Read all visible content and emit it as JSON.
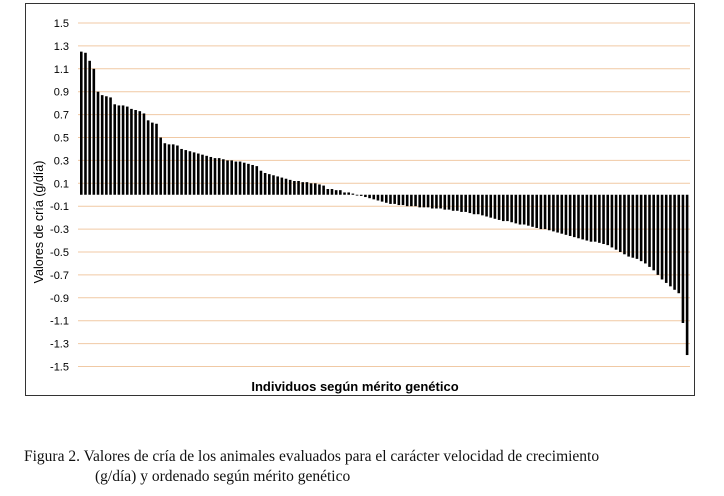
{
  "chart_data": {
    "type": "bar",
    "title": "",
    "xlabel": "Individuos  según mérito genético",
    "ylabel": "Valores de cría (g/día)",
    "ylim": [
      -1.5,
      1.5
    ],
    "yticks": [
      1.5,
      1.3,
      1.1,
      0.9,
      0.7,
      0.5,
      0.3,
      0.1,
      -0.1,
      -0.3,
      -0.5,
      -0.7,
      -0.9,
      -1.1,
      -1.3,
      -1.5
    ],
    "ytick_labels": [
      "1.5",
      "1.3",
      "1.1",
      "0.9",
      "0.7",
      "0.5",
      "0.3",
      "0.1",
      "-0.1",
      "-0.3",
      "-0.5",
      "-0.7",
      "-0.9",
      "-1.1",
      "-1.3",
      "-1.5"
    ],
    "grid": "horizontal",
    "colors": {
      "bar": "#000000",
      "grid": "#f0c9a4"
    },
    "values": [
      1.25,
      1.24,
      1.17,
      1.1,
      0.9,
      0.87,
      0.86,
      0.85,
      0.79,
      0.78,
      0.78,
      0.77,
      0.75,
      0.74,
      0.73,
      0.71,
      0.65,
      0.63,
      0.62,
      0.5,
      0.45,
      0.44,
      0.44,
      0.43,
      0.4,
      0.39,
      0.38,
      0.37,
      0.36,
      0.35,
      0.34,
      0.33,
      0.32,
      0.32,
      0.31,
      0.3,
      0.3,
      0.29,
      0.29,
      0.28,
      0.27,
      0.26,
      0.25,
      0.21,
      0.19,
      0.18,
      0.17,
      0.16,
      0.15,
      0.14,
      0.13,
      0.12,
      0.12,
      0.11,
      0.11,
      0.1,
      0.1,
      0.09,
      0.08,
      0.05,
      0.05,
      0.04,
      0.04,
      0.02,
      0.02,
      0.01,
      0.0,
      -0.01,
      -0.02,
      -0.03,
      -0.04,
      -0.05,
      -0.06,
      -0.07,
      -0.08,
      -0.08,
      -0.09,
      -0.09,
      -0.1,
      -0.1,
      -0.1,
      -0.11,
      -0.11,
      -0.11,
      -0.12,
      -0.12,
      -0.12,
      -0.13,
      -0.13,
      -0.14,
      -0.14,
      -0.15,
      -0.15,
      -0.16,
      -0.17,
      -0.17,
      -0.18,
      -0.19,
      -0.2,
      -0.21,
      -0.22,
      -0.23,
      -0.23,
      -0.24,
      -0.25,
      -0.26,
      -0.26,
      -0.27,
      -0.28,
      -0.29,
      -0.3,
      -0.3,
      -0.31,
      -0.32,
      -0.33,
      -0.34,
      -0.35,
      -0.36,
      -0.37,
      -0.38,
      -0.39,
      -0.4,
      -0.41,
      -0.41,
      -0.42,
      -0.43,
      -0.44,
      -0.46,
      -0.48,
      -0.5,
      -0.52,
      -0.54,
      -0.55,
      -0.56,
      -0.58,
      -0.6,
      -0.63,
      -0.66,
      -0.7,
      -0.74,
      -0.77,
      -0.8,
      -0.83,
      -0.86,
      -1.12,
      -1.4
    ]
  },
  "caption": {
    "line1": "Figura 2. Valores de cría de los animales evaluados para el carácter velocidad de crecimiento",
    "line2": "(g/día) y ordenado según mérito genético"
  }
}
